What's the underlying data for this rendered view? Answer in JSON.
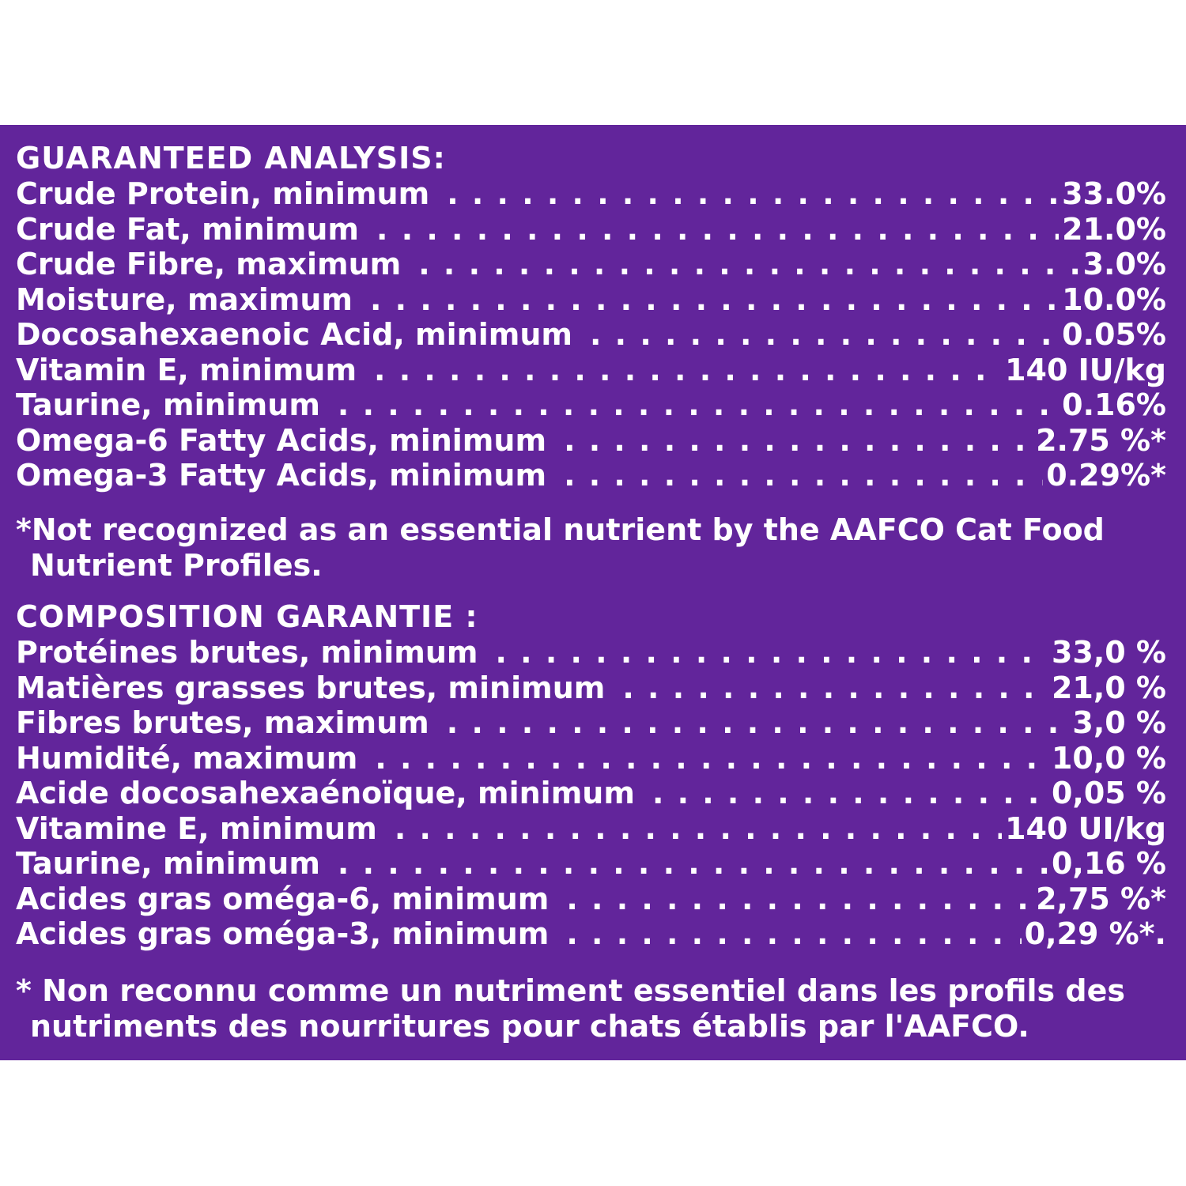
{
  "colors": {
    "panel_bg": "#62259b",
    "text": "#ffffff",
    "page_bg": "#ffffff"
  },
  "english": {
    "title": "GUARANTEED ANALYSIS:",
    "rows": [
      {
        "label": "Crude Protein, minimum",
        "value": "33.0%"
      },
      {
        "label": "Crude Fat, minimum",
        "value": "21.0%"
      },
      {
        "label": "Crude Fibre, maximum",
        "value": "3.0%"
      },
      {
        "label": "Moisture, maximum",
        "value": "10.0%"
      },
      {
        "label": "Docosahexaenoic Acid, minimum",
        "value": "0.05%"
      },
      {
        "label": "Vitamin E, minimum",
        "value": "140 IU/kg"
      },
      {
        "label": "Taurine, minimum",
        "value": "0.16%"
      },
      {
        "label": "Omega-6 Fatty Acids, minimum",
        "value": "2.75 %*"
      },
      {
        "label": "Omega-3 Fatty Acids, minimum",
        "value": "0.29%*"
      }
    ],
    "footnote": "*Not recognized as an essential nutrient by the AAFCO Cat Food Nutrient Profiles."
  },
  "french": {
    "title": "COMPOSITION GARANTIE :",
    "rows": [
      {
        "label": "Protéines brutes, minimum",
        "value": "33,0 %"
      },
      {
        "label": "Matières grasses brutes, minimum",
        "value": "21,0 %"
      },
      {
        "label": "Fibres brutes, maximum",
        "value": "3,0 %"
      },
      {
        "label": "Humidité, maximum",
        "value": "10,0 %"
      },
      {
        "label": "Acide docosahexaénoïque, minimum",
        "value": "0,05 %"
      },
      {
        "label": "Vitamine E, minimum",
        "value": "140 UI/kg"
      },
      {
        "label": "Taurine, minimum",
        "value": "0,16 %"
      },
      {
        "label": "Acides gras oméga-6, minimum",
        "value": "2,75 %*"
      },
      {
        "label": "Acides gras oméga-3, minimum",
        "value": "0,29 %*."
      }
    ],
    "footnote": "* Non reconnu comme un nutriment essentiel dans les profils des nutriments des nourritures pour chats établis par l'AAFCO."
  }
}
